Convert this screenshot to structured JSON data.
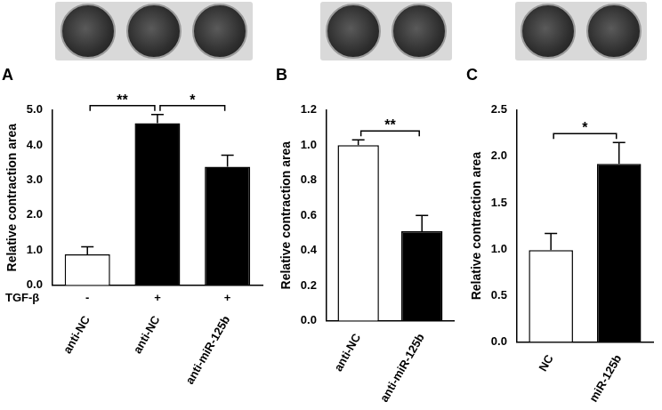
{
  "chart_data": [
    {
      "type": "bar",
      "title": "A",
      "categories": [
        "anti-NC",
        "anti-NC",
        "anti-miR-125b"
      ],
      "values": [
        0.88,
        4.62,
        3.38
      ],
      "errors": [
        0.22,
        0.25,
        0.33
      ],
      "colors": [
        "#ffffff",
        "#000000",
        "#000000"
      ],
      "ylabel": "Relative contraction area",
      "ylim": [
        0,
        5
      ],
      "yticks": [
        {
          "value": 0,
          "label": "0.0"
        },
        {
          "value": 1,
          "label": "1.0"
        },
        {
          "value": 2,
          "label": "2.0"
        },
        {
          "value": 3,
          "label": "3.0"
        },
        {
          "value": 4,
          "label": "4.0"
        },
        {
          "value": 5,
          "label": "5.0"
        }
      ],
      "grid": false,
      "row": {
        "label": "TGF-β",
        "values": [
          "-",
          "+",
          "+"
        ]
      },
      "annotations": [
        {
          "from": 0,
          "to": 1,
          "text": "**"
        },
        {
          "from": 1,
          "to": 2,
          "text": "*"
        }
      ]
    },
    {
      "type": "bar",
      "title": "B",
      "categories": [
        "anti-NC",
        "anti-miR-125b"
      ],
      "values": [
        1.0,
        0.51
      ],
      "errors": [
        0.03,
        0.09
      ],
      "colors": [
        "#ffffff",
        "#000000"
      ],
      "ylabel": "Relative contraction area",
      "ylim": [
        0,
        1.2
      ],
      "yticks": [
        {
          "value": 0,
          "label": "0.0"
        },
        {
          "value": 0.2,
          "label": "0.2"
        },
        {
          "value": 0.4,
          "label": "0.4"
        },
        {
          "value": 0.6,
          "label": "0.6"
        },
        {
          "value": 0.8,
          "label": "0.8"
        },
        {
          "value": 1,
          "label": "1.0"
        },
        {
          "value": 1.2,
          "label": "1.2"
        }
      ],
      "grid": false,
      "annotations": [
        {
          "from": 0,
          "to": 1,
          "text": "**"
        }
      ]
    },
    {
      "type": "bar",
      "title": "C",
      "categories": [
        "NC",
        "miR-125b"
      ],
      "values": [
        0.99,
        1.92
      ],
      "errors": [
        0.18,
        0.23
      ],
      "colors": [
        "#ffffff",
        "#000000"
      ],
      "ylabel": "Relative contraction area",
      "ylim": [
        0,
        2.5
      ],
      "yticks": [
        {
          "value": 0,
          "label": "0.0"
        },
        {
          "value": 0.5,
          "label": "0.5"
        },
        {
          "value": 1,
          "label": "1.0"
        },
        {
          "value": 1.5,
          "label": "1.5"
        },
        {
          "value": 2,
          "label": "2.0"
        },
        {
          "value": 2.5,
          "label": "2.5"
        }
      ],
      "grid": false,
      "annotations": [
        {
          "from": 0,
          "to": 1,
          "text": "*"
        }
      ]
    }
  ]
}
